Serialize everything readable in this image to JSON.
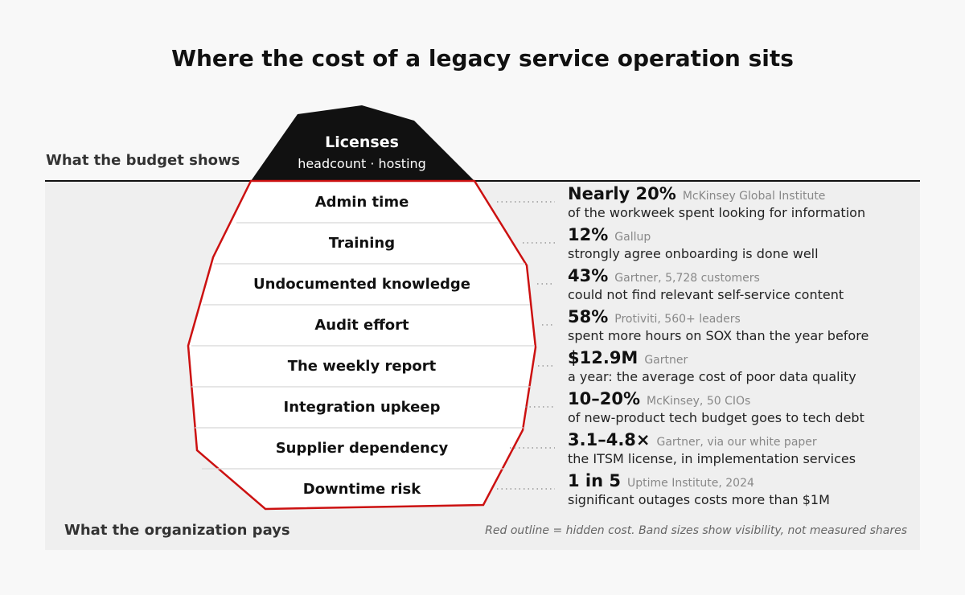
{
  "title": "Where the cost of a legacy service operation sits",
  "budget_label": "What the budget shows",
  "org_label": "What the organization pays",
  "footnote": "Red outline = hidden cost. Band sizes show visibility, not measured shares",
  "tip": {
    "title": "Licenses",
    "subtitle": "headcount · hosting"
  },
  "colors": {
    "outline": "#cc1111",
    "tip": "#111111",
    "panel": "#efefef"
  },
  "bands": [
    {
      "label": "Admin time",
      "stat": "Nearly 20%",
      "source": "McKinsey Global Institute",
      "desc": "of the workweek spent looking for information"
    },
    {
      "label": "Training",
      "stat": "12%",
      "source": "Gallup",
      "desc": "strongly agree onboarding is done well"
    },
    {
      "label": "Undocumented knowledge",
      "stat": "43%",
      "source": "Gartner, 5,728 customers",
      "desc": "could not find relevant self-service content"
    },
    {
      "label": "Audit effort",
      "stat": "58%",
      "source": "Protiviti, 560+ leaders",
      "desc": "spent more hours on SOX than the year before"
    },
    {
      "label": "The weekly report",
      "stat": "$12.9M",
      "source": "Gartner",
      "desc": "a year: the average cost of poor data quality"
    },
    {
      "label": "Integration upkeep",
      "stat": "10–20%",
      "source": "McKinsey, 50 CIOs",
      "desc": "of new-product tech budget goes to tech debt"
    },
    {
      "label": "Supplier dependency",
      "stat": "3.1–4.8×",
      "source": "Gartner, via our white paper",
      "desc": "the ITSM license, in implementation services"
    },
    {
      "label": "Downtime risk",
      "stat": "1 in 5",
      "source": "Uptime Institute, 2024",
      "desc": "significant outages costs more than $1M"
    }
  ]
}
